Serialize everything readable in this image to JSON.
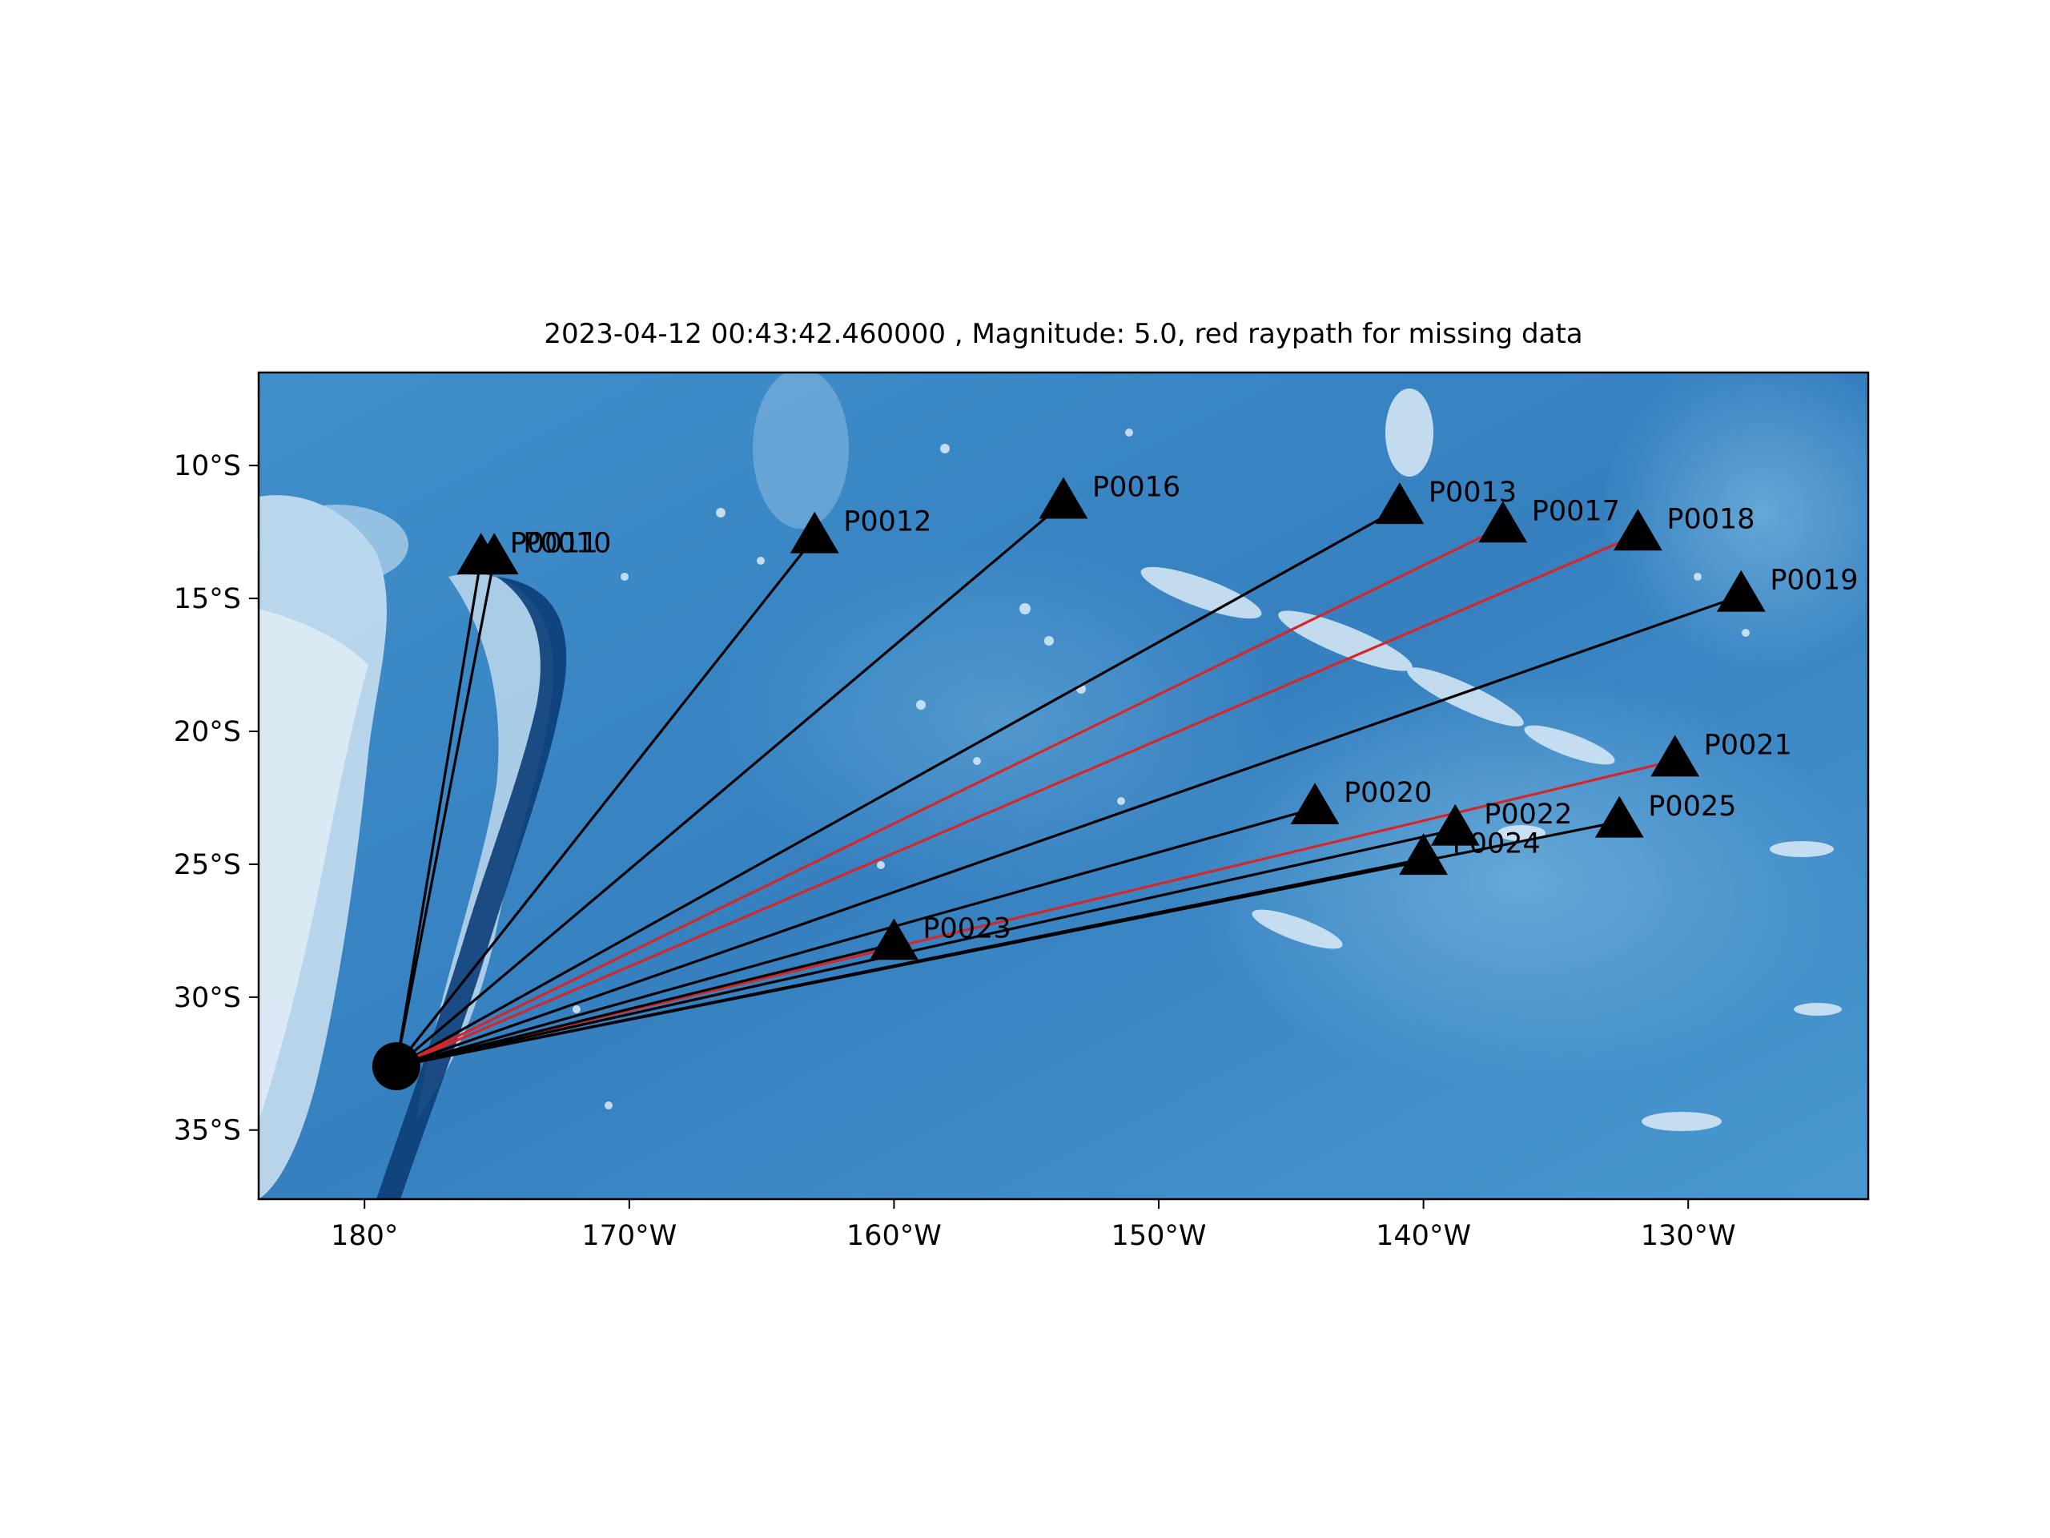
{
  "chart_data": {
    "type": "map",
    "title": "2023-04-12 00:43:42.460000 , Magnitude: 5.0, red raypath for missing data",
    "projection": "plate-carree",
    "lon_range": [
      -184,
      -123.2
    ],
    "lat_range": [
      -37.6,
      -6.5
    ],
    "x_ticks": [
      {
        "lon": -180,
        "label": "180°"
      },
      {
        "lon": -170,
        "label": "170°W"
      },
      {
        "lon": -160,
        "label": "160°W"
      },
      {
        "lon": -150,
        "label": "150°W"
      },
      {
        "lon": -140,
        "label": "140°W"
      },
      {
        "lon": -130,
        "label": "130°W"
      }
    ],
    "y_ticks": [
      {
        "lat": -10,
        "label": "10°S"
      },
      {
        "lat": -15,
        "label": "15°S"
      },
      {
        "lat": -20,
        "label": "20°S"
      },
      {
        "lat": -25,
        "label": "25°S"
      },
      {
        "lat": -30,
        "label": "30°S"
      },
      {
        "lat": -35,
        "label": "35°S"
      }
    ],
    "event": {
      "lon": -178.8,
      "lat": -32.6
    },
    "stations": [
      {
        "name": "P0010",
        "lon": -175.1,
        "lat": -13.5,
        "missing": false
      },
      {
        "name": "P0011",
        "lon": -175.6,
        "lat": -13.5,
        "missing": false
      },
      {
        "name": "P0012",
        "lon": -163.0,
        "lat": -12.7,
        "missing": false
      },
      {
        "name": "P0016",
        "lon": -153.6,
        "lat": -11.4,
        "missing": false
      },
      {
        "name": "P0013",
        "lon": -140.9,
        "lat": -11.6,
        "missing": false
      },
      {
        "name": "P0017",
        "lon": -137.0,
        "lat": -12.3,
        "missing": true
      },
      {
        "name": "P0018",
        "lon": -131.9,
        "lat": -12.6,
        "missing": true
      },
      {
        "name": "P0019",
        "lon": -128.0,
        "lat": -14.9,
        "missing": false
      },
      {
        "name": "P0021",
        "lon": -130.5,
        "lat": -21.1,
        "missing": true
      },
      {
        "name": "P0020",
        "lon": -144.1,
        "lat": -22.9,
        "missing": false
      },
      {
        "name": "P0022",
        "lon": -138.8,
        "lat": -23.7,
        "missing": false
      },
      {
        "name": "P0025",
        "lon": -132.6,
        "lat": -23.4,
        "missing": false
      },
      {
        "name": "P0024",
        "lon": -140.0,
        "lat": -24.8,
        "missing": false
      },
      {
        "name": "P0023",
        "lon": -160.0,
        "lat": -28.0,
        "missing": false
      }
    ],
    "colors": {
      "ocean": "#3a8ac5",
      "raypath": "#000000",
      "missing_raypath": "#d62728",
      "station": "#000000"
    }
  }
}
